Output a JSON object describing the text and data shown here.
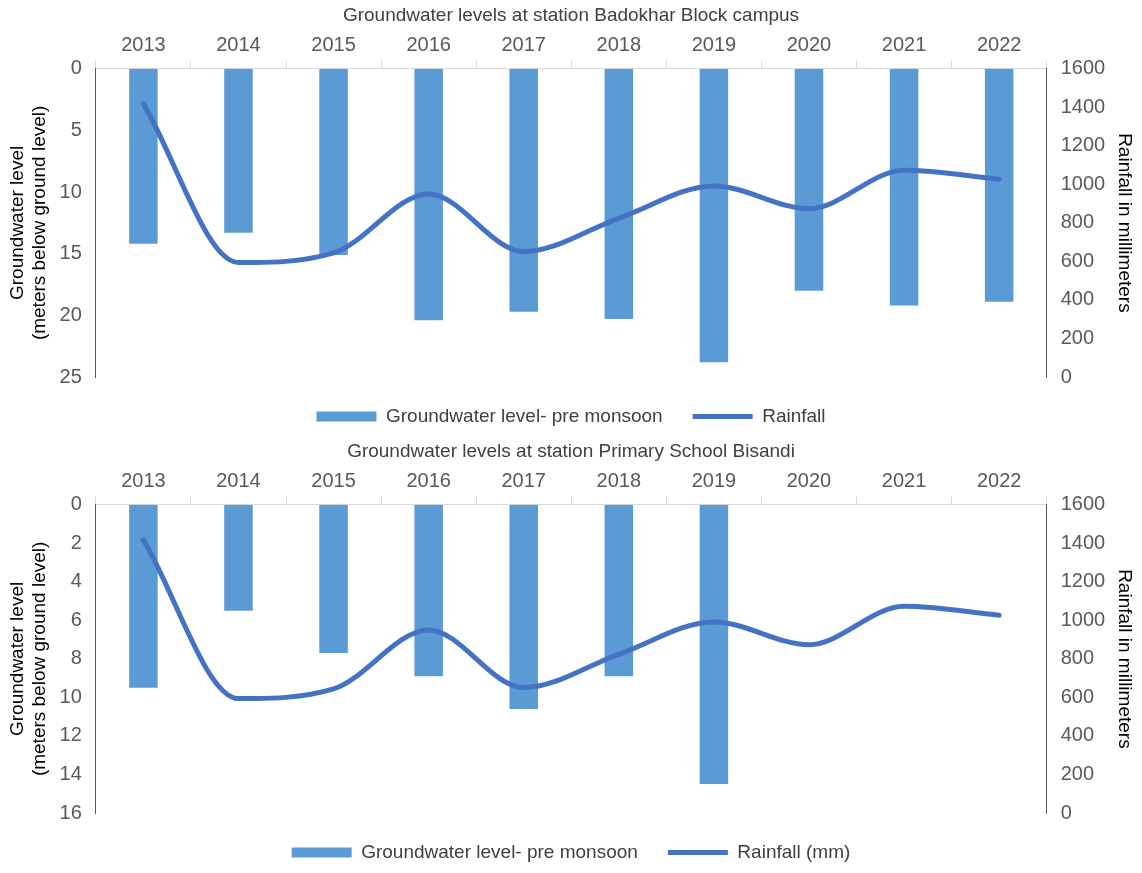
{
  "chart_data": [
    {
      "type": "bar",
      "title": "Groundwater levels at station Badokhar Block campus",
      "ylabel": "Groundwater level\n(meters below ground level)",
      "y2label": "Rainfall in millimeters",
      "categories": [
        "2013",
        "2014",
        "2015",
        "2016",
        "2017",
        "2018",
        "2019",
        "2020",
        "2021",
        "2022"
      ],
      "series": [
        {
          "name": "Groundwater level- pre monsoon",
          "color": "#5b9bd5",
          "values": [
            14.2,
            13.3,
            15.1,
            20.4,
            19.7,
            20.3,
            23.8,
            18.0,
            19.2,
            18.9
          ]
        },
        {
          "name": "Rainfall",
          "type": "line",
          "axis": "y2",
          "color": "#4472c4",
          "values": [
            1418,
            594,
            644,
            950,
            651,
            824,
            992,
            874,
            1073,
            1027
          ]
        }
      ],
      "ylim": [
        25,
        0
      ],
      "yticks": [
        0,
        5,
        10,
        15,
        20,
        25
      ],
      "y2lim": [
        0,
        1600
      ],
      "y2ticks": [
        0,
        200,
        400,
        600,
        800,
        1000,
        1200,
        1400,
        1600
      ],
      "grid": false,
      "legend": "bottom",
      "marker": "none"
    },
    {
      "type": "bar",
      "title": "Groundwater levels at station Primary School Bisandi",
      "ylabel": "Groundwater level\n(meters below ground level)",
      "y2label": "Rainfall in millimeters",
      "categories": [
        "2013",
        "2014",
        "2015",
        "2016",
        "2017",
        "2018",
        "2019",
        "2020",
        "2021",
        "2022"
      ],
      "series": [
        {
          "name": "Groundwater level- pre monsoon",
          "color": "#5b9bd5",
          "values": [
            9.5,
            5.5,
            7.7,
            8.9,
            10.6,
            8.9,
            14.5,
            null,
            null,
            null
          ]
        },
        {
          "name": "Rainfall (mm)",
          "type": "line",
          "axis": "y2",
          "color": "#4472c4",
          "values": [
            1418,
            594,
            644,
            950,
            651,
            824,
            992,
            874,
            1073,
            1027
          ]
        }
      ],
      "ylim": [
        16,
        0
      ],
      "yticks": [
        0,
        2,
        4,
        6,
        8,
        10,
        12,
        14,
        16
      ],
      "y2lim": [
        0,
        1600
      ],
      "y2ticks": [
        0,
        200,
        400,
        600,
        800,
        1000,
        1200,
        1400,
        1600
      ],
      "grid": false,
      "legend": "bottom",
      "marker": "none"
    }
  ]
}
